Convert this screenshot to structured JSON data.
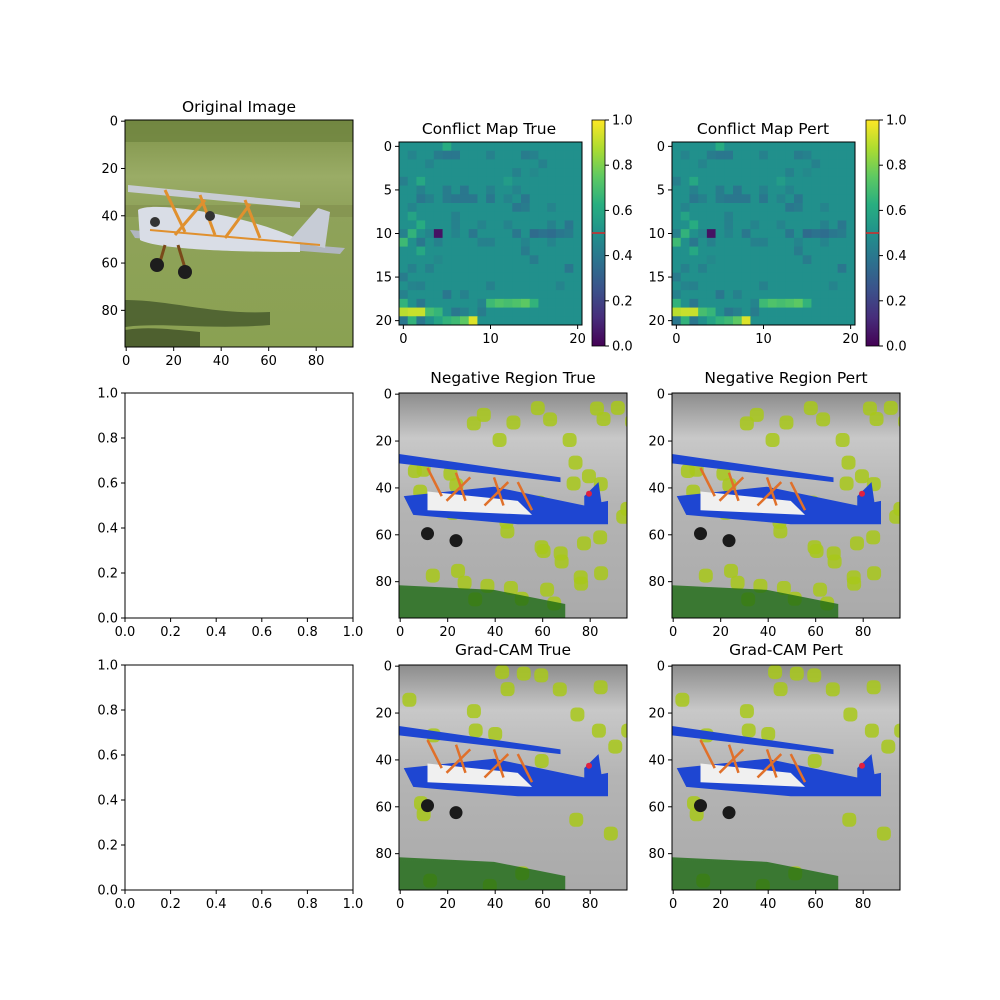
{
  "figure": {
    "background": "#ffffff",
    "rows": 3,
    "cols": 3
  },
  "chart_data": [
    {
      "type": "image",
      "title": "Original Image",
      "xlim": [
        0,
        96
      ],
      "ylim": [
        96,
        0
      ],
      "xticks": [
        "0",
        "20",
        "40",
        "60",
        "80"
      ],
      "xtick_vals": [
        0,
        20,
        40,
        60,
        80
      ],
      "yticks": [
        "0",
        "20",
        "40",
        "60",
        "80"
      ],
      "ytick_vals": [
        0,
        20,
        40,
        60,
        80
      ],
      "content": "photo of a silver biplane with orange struts flying low over green grass",
      "colors": {
        "grass": "#8fa25a",
        "plane": "#d9dde6",
        "struts": "#e0902e"
      }
    },
    {
      "type": "heatmap",
      "title": "Conflict Map True",
      "shape": [
        21,
        21
      ],
      "colormap": "viridis",
      "xticks": [
        "0",
        "10",
        "20"
      ],
      "xtick_vals": [
        0,
        10,
        20
      ],
      "yticks": [
        "0",
        "5",
        "10",
        "15",
        "20"
      ],
      "ytick_vals": [
        0,
        5,
        10,
        15,
        20
      ],
      "colorbar": {
        "range": [
          0,
          1
        ],
        "ticks": [
          "0.0",
          "0.2",
          "0.4",
          "0.6",
          "0.8",
          "1.0"
        ],
        "tick_vals": [
          0,
          0.2,
          0.4,
          0.6,
          0.8,
          1.0
        ],
        "marker": 0.5
      },
      "baseline_value": 0.5,
      "cells": [
        [
          0,
          5,
          0.62
        ],
        [
          1,
          1,
          0.45
        ],
        [
          1,
          4,
          0.42
        ],
        [
          1,
          5,
          0.4
        ],
        [
          1,
          6,
          0.4
        ],
        [
          1,
          10,
          0.44
        ],
        [
          1,
          14,
          0.42
        ],
        [
          1,
          15,
          0.44
        ],
        [
          2,
          3,
          0.45
        ],
        [
          2,
          16,
          0.44
        ],
        [
          3,
          13,
          0.44
        ],
        [
          3,
          15,
          0.47
        ],
        [
          4,
          0,
          0.43
        ],
        [
          4,
          2,
          0.6
        ],
        [
          4,
          12,
          0.55
        ],
        [
          5,
          2,
          0.44
        ],
        [
          5,
          5,
          0.42
        ],
        [
          5,
          7,
          0.4
        ],
        [
          5,
          10,
          0.44
        ],
        [
          5,
          13,
          0.45
        ],
        [
          6,
          2,
          0.4
        ],
        [
          6,
          3,
          0.44
        ],
        [
          6,
          5,
          0.42
        ],
        [
          6,
          6,
          0.4
        ],
        [
          6,
          7,
          0.4
        ],
        [
          6,
          8,
          0.4
        ],
        [
          6,
          10,
          0.4
        ],
        [
          6,
          12,
          0.45
        ],
        [
          6,
          14,
          0.4
        ],
        [
          7,
          1,
          0.45
        ],
        [
          7,
          13,
          0.4
        ],
        [
          7,
          14,
          0.42
        ],
        [
          7,
          17,
          0.45
        ],
        [
          8,
          1,
          0.58
        ],
        [
          8,
          6,
          0.44
        ],
        [
          9,
          2,
          0.62
        ],
        [
          9,
          6,
          0.44
        ],
        [
          9,
          9,
          0.45
        ],
        [
          9,
          12,
          0.45
        ],
        [
          9,
          17,
          0.44
        ],
        [
          9,
          19,
          0.4
        ],
        [
          10,
          0,
          0.44
        ],
        [
          10,
          1,
          0.65
        ],
        [
          10,
          3,
          0.45
        ],
        [
          10,
          4,
          0.05
        ],
        [
          10,
          6,
          0.45
        ],
        [
          10,
          8,
          0.4
        ],
        [
          10,
          13,
          0.4
        ],
        [
          10,
          15,
          0.35
        ],
        [
          10,
          16,
          0.38
        ],
        [
          10,
          17,
          0.36
        ],
        [
          10,
          18,
          0.4
        ],
        [
          10,
          19,
          0.42
        ],
        [
          11,
          0,
          0.68
        ],
        [
          11,
          2,
          0.4
        ],
        [
          11,
          4,
          0.44
        ],
        [
          11,
          9,
          0.44
        ],
        [
          11,
          10,
          0.44
        ],
        [
          11,
          14,
          0.45
        ],
        [
          11,
          17,
          0.45
        ],
        [
          12,
          2,
          0.6
        ],
        [
          12,
          14,
          0.42
        ],
        [
          13,
          4,
          0.47
        ],
        [
          13,
          15,
          0.42
        ],
        [
          14,
          1,
          0.44
        ],
        [
          14,
          3,
          0.44
        ],
        [
          14,
          19,
          0.4
        ],
        [
          15,
          0,
          0.42
        ],
        [
          16,
          1,
          0.45
        ],
        [
          16,
          2,
          0.44
        ],
        [
          16,
          10,
          0.44
        ],
        [
          16,
          18,
          0.45
        ],
        [
          17,
          0,
          0.44
        ],
        [
          17,
          5,
          0.4
        ],
        [
          17,
          7,
          0.44
        ],
        [
          18,
          0,
          0.65
        ],
        [
          18,
          2,
          0.4
        ],
        [
          18,
          9,
          0.45
        ],
        [
          18,
          10,
          0.68
        ],
        [
          18,
          11,
          0.72
        ],
        [
          18,
          12,
          0.7
        ],
        [
          18,
          13,
          0.72
        ],
        [
          18,
          14,
          0.75
        ],
        [
          18,
          15,
          0.65
        ],
        [
          19,
          0,
          0.9
        ],
        [
          19,
          1,
          0.92
        ],
        [
          19,
          2,
          0.92
        ],
        [
          19,
          3,
          0.7
        ],
        [
          19,
          4,
          0.66
        ],
        [
          19,
          6,
          0.4
        ],
        [
          19,
          7,
          0.44
        ],
        [
          19,
          9,
          0.42
        ],
        [
          20,
          0,
          0.4
        ],
        [
          20,
          1,
          0.65
        ],
        [
          20,
          2,
          0.4
        ],
        [
          20,
          4,
          0.58
        ],
        [
          20,
          5,
          0.65
        ],
        [
          20,
          6,
          0.68
        ],
        [
          20,
          7,
          0.75
        ],
        [
          20,
          8,
          0.95
        ]
      ]
    },
    {
      "type": "heatmap",
      "title": "Conflict Map Pert",
      "shape": [
        21,
        21
      ],
      "colormap": "viridis",
      "xticks": [
        "0",
        "10",
        "20"
      ],
      "xtick_vals": [
        0,
        10,
        20
      ],
      "yticks": [
        "0",
        "5",
        "10",
        "15",
        "20"
      ],
      "ytick_vals": [
        0,
        5,
        10,
        15,
        20
      ],
      "colorbar": {
        "range": [
          0,
          1
        ],
        "ticks": [
          "0.0",
          "0.2",
          "0.4",
          "0.6",
          "0.8",
          "1.0"
        ],
        "tick_vals": [
          0,
          0.2,
          0.4,
          0.6,
          0.8,
          1.0
        ],
        "marker": 0.5
      },
      "baseline_value": 0.5,
      "cells": [
        [
          0,
          5,
          0.62
        ],
        [
          1,
          1,
          0.45
        ],
        [
          1,
          4,
          0.42
        ],
        [
          1,
          5,
          0.4
        ],
        [
          1,
          6,
          0.4
        ],
        [
          1,
          10,
          0.44
        ],
        [
          1,
          14,
          0.42
        ],
        [
          1,
          15,
          0.44
        ],
        [
          2,
          3,
          0.45
        ],
        [
          2,
          16,
          0.44
        ],
        [
          3,
          13,
          0.44
        ],
        [
          3,
          15,
          0.47
        ],
        [
          4,
          0,
          0.43
        ],
        [
          4,
          2,
          0.6
        ],
        [
          4,
          12,
          0.55
        ],
        [
          5,
          2,
          0.44
        ],
        [
          5,
          5,
          0.42
        ],
        [
          5,
          7,
          0.4
        ],
        [
          5,
          10,
          0.44
        ],
        [
          5,
          13,
          0.45
        ],
        [
          6,
          2,
          0.4
        ],
        [
          6,
          3,
          0.44
        ],
        [
          6,
          5,
          0.42
        ],
        [
          6,
          6,
          0.4
        ],
        [
          6,
          7,
          0.4
        ],
        [
          6,
          8,
          0.4
        ],
        [
          6,
          10,
          0.4
        ],
        [
          6,
          12,
          0.45
        ],
        [
          6,
          14,
          0.4
        ],
        [
          7,
          1,
          0.45
        ],
        [
          7,
          13,
          0.4
        ],
        [
          7,
          14,
          0.42
        ],
        [
          7,
          17,
          0.45
        ],
        [
          8,
          1,
          0.58
        ],
        [
          8,
          6,
          0.44
        ],
        [
          9,
          2,
          0.62
        ],
        [
          9,
          6,
          0.44
        ],
        [
          9,
          9,
          0.45
        ],
        [
          9,
          12,
          0.45
        ],
        [
          9,
          17,
          0.44
        ],
        [
          9,
          19,
          0.4
        ],
        [
          10,
          0,
          0.44
        ],
        [
          10,
          1,
          0.65
        ],
        [
          10,
          3,
          0.45
        ],
        [
          10,
          4,
          0.05
        ],
        [
          10,
          6,
          0.45
        ],
        [
          10,
          8,
          0.4
        ],
        [
          10,
          13,
          0.4
        ],
        [
          10,
          15,
          0.35
        ],
        [
          10,
          16,
          0.38
        ],
        [
          10,
          17,
          0.36
        ],
        [
          10,
          18,
          0.4
        ],
        [
          10,
          19,
          0.42
        ],
        [
          11,
          0,
          0.68
        ],
        [
          11,
          2,
          0.4
        ],
        [
          11,
          4,
          0.44
        ],
        [
          11,
          9,
          0.44
        ],
        [
          11,
          10,
          0.44
        ],
        [
          11,
          14,
          0.45
        ],
        [
          11,
          17,
          0.45
        ],
        [
          12,
          2,
          0.6
        ],
        [
          12,
          14,
          0.42
        ],
        [
          13,
          4,
          0.47
        ],
        [
          13,
          15,
          0.42
        ],
        [
          14,
          1,
          0.44
        ],
        [
          14,
          3,
          0.44
        ],
        [
          14,
          19,
          0.4
        ],
        [
          15,
          0,
          0.42
        ],
        [
          16,
          1,
          0.45
        ],
        [
          16,
          2,
          0.44
        ],
        [
          16,
          10,
          0.44
        ],
        [
          16,
          18,
          0.45
        ],
        [
          17,
          0,
          0.44
        ],
        [
          17,
          5,
          0.4
        ],
        [
          17,
          7,
          0.44
        ],
        [
          18,
          0,
          0.65
        ],
        [
          18,
          2,
          0.4
        ],
        [
          18,
          9,
          0.45
        ],
        [
          18,
          10,
          0.68
        ],
        [
          18,
          11,
          0.72
        ],
        [
          18,
          12,
          0.7
        ],
        [
          18,
          13,
          0.72
        ],
        [
          18,
          14,
          0.75
        ],
        [
          18,
          15,
          0.65
        ],
        [
          19,
          0,
          0.9
        ],
        [
          19,
          1,
          0.92
        ],
        [
          19,
          2,
          0.92
        ],
        [
          19,
          3,
          0.7
        ],
        [
          19,
          4,
          0.66
        ],
        [
          19,
          6,
          0.4
        ],
        [
          19,
          7,
          0.44
        ],
        [
          19,
          9,
          0.42
        ],
        [
          20,
          0,
          0.4
        ],
        [
          20,
          1,
          0.65
        ],
        [
          20,
          2,
          0.4
        ],
        [
          20,
          4,
          0.58
        ],
        [
          20,
          5,
          0.65
        ],
        [
          20,
          6,
          0.68
        ],
        [
          20,
          7,
          0.75
        ],
        [
          20,
          8,
          0.95
        ]
      ]
    },
    {
      "type": "empty",
      "title": "",
      "xlim": [
        0,
        1
      ],
      "ylim": [
        0,
        1
      ],
      "xticks": [
        "0.0",
        "0.2",
        "0.4",
        "0.6",
        "0.8",
        "1.0"
      ],
      "xtick_vals": [
        0,
        0.2,
        0.4,
        0.6,
        0.8,
        1.0
      ],
      "yticks": [
        "0.0",
        "0.2",
        "0.4",
        "0.6",
        "0.8",
        "1.0"
      ],
      "ytick_vals": [
        0,
        0.2,
        0.4,
        0.6,
        0.8,
        1.0
      ]
    },
    {
      "type": "image",
      "title": "Negative Region True",
      "xlim": [
        0,
        96
      ],
      "ylim": [
        96,
        0
      ],
      "xticks": [
        "0",
        "20",
        "40",
        "60",
        "80"
      ],
      "xtick_vals": [
        0,
        20,
        40,
        60,
        80
      ],
      "yticks": [
        "0",
        "20",
        "40",
        "60",
        "80"
      ],
      "ytick_vals": [
        0,
        20,
        40,
        60,
        80
      ],
      "content": "grayscale biplane with blue, orange and white highlights and scattered yellow-green blobs",
      "colors": {
        "background": "#b4b4b4",
        "plane": "#1e46d2",
        "overlay": "#a0c814"
      }
    },
    {
      "type": "image",
      "title": "Negative Region Pert",
      "xlim": [
        0,
        96
      ],
      "ylim": [
        96,
        0
      ],
      "xticks": [
        "0",
        "20",
        "40",
        "60",
        "80"
      ],
      "xtick_vals": [
        0,
        20,
        40,
        60,
        80
      ],
      "yticks": [
        "0",
        "20",
        "40",
        "60",
        "80"
      ],
      "ytick_vals": [
        0,
        20,
        40,
        60,
        80
      ],
      "content": "grayscale biplane with blue, orange and white highlights and scattered yellow-green blobs",
      "colors": {
        "background": "#b4b4b4",
        "plane": "#1e46d2",
        "overlay": "#a0c814"
      }
    },
    {
      "type": "empty",
      "title": "",
      "xlim": [
        0,
        1
      ],
      "ylim": [
        0,
        1
      ],
      "xticks": [
        "0.0",
        "0.2",
        "0.4",
        "0.6",
        "0.8",
        "1.0"
      ],
      "xtick_vals": [
        0,
        0.2,
        0.4,
        0.6,
        0.8,
        1.0
      ],
      "yticks": [
        "0.0",
        "0.2",
        "0.4",
        "0.6",
        "0.8",
        "1.0"
      ],
      "ytick_vals": [
        0,
        0.2,
        0.4,
        0.6,
        0.8,
        1.0
      ]
    },
    {
      "type": "image",
      "title": "Grad-CAM True",
      "xlim": [
        0,
        96
      ],
      "ylim": [
        96,
        0
      ],
      "xticks": [
        "0",
        "20",
        "40",
        "60",
        "80"
      ],
      "xtick_vals": [
        0,
        20,
        40,
        60,
        80
      ],
      "yticks": [
        "0",
        "20",
        "40",
        "60",
        "80"
      ],
      "ytick_vals": [
        0,
        20,
        40,
        60,
        80
      ],
      "content": "grayscale biplane with blue, orange and white highlights and sparse yellow-green blobs",
      "colors": {
        "background": "#b4b4b4",
        "plane": "#1e46d2",
        "overlay": "#a0c814"
      }
    },
    {
      "type": "image",
      "title": "Grad-CAM Pert",
      "xlim": [
        0,
        96
      ],
      "ylim": [
        96,
        0
      ],
      "xticks": [
        "0",
        "20",
        "40",
        "60",
        "80"
      ],
      "xtick_vals": [
        0,
        20,
        40,
        60,
        80
      ],
      "yticks": [
        "0",
        "20",
        "40",
        "60",
        "80"
      ],
      "ytick_vals": [
        0,
        20,
        40,
        60,
        80
      ],
      "content": "grayscale biplane with blue, orange and white highlights and sparse yellow-green blobs",
      "colors": {
        "background": "#b4b4b4",
        "plane": "#1e46d2",
        "overlay": "#a0c814"
      }
    }
  ]
}
